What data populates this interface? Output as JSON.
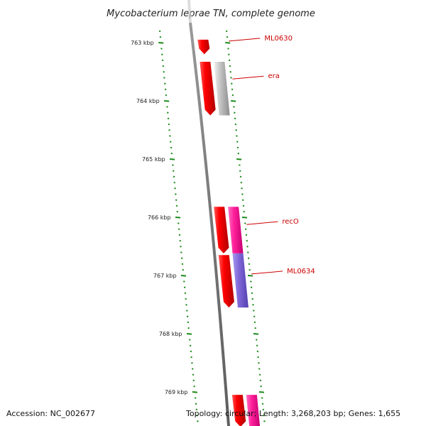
{
  "title": "Mycobacterium leprae TN, complete genome",
  "footer": {
    "accession": "Accession: NC_002677",
    "summary": "Topology: circular; Length: 3,268,203 bp; Genes: 1,655"
  },
  "colors": {
    "backbone": "#808080",
    "tick": "#1a8a1a",
    "label_line": "#cc0000",
    "label_text": "#cc0000",
    "gene_red": "#ff0000",
    "gene_gray": "#c0c0c0",
    "gene_magenta": "#ff1f9a",
    "gene_violet": "#7f67d8"
  },
  "scale_kbp": [
    763,
    764,
    765,
    766,
    767,
    768,
    769
  ],
  "scale_labels": [
    "763 kbp",
    "764 kbp",
    "765 kbp",
    "766 kbp",
    "767 kbp",
    "768 kbp",
    "769 kbp"
  ],
  "genes": [
    {
      "name": "ML0630",
      "start_kbp": 762.95,
      "end_kbp": 763.2,
      "strand": "-",
      "track": "inner",
      "color": "red"
    },
    {
      "name": "",
      "start_kbp": 763.33,
      "end_kbp": 764.25,
      "strand": "-",
      "track": "inner",
      "color": "red"
    },
    {
      "name": "era",
      "start_kbp": 763.33,
      "end_kbp": 764.25,
      "strand": "+",
      "track": "outer",
      "color": "gray"
    },
    {
      "name": "",
      "start_kbp": 765.82,
      "end_kbp": 766.62,
      "strand": "-",
      "track": "inner",
      "color": "red"
    },
    {
      "name": "recO",
      "start_kbp": 765.82,
      "end_kbp": 766.62,
      "strand": "+",
      "track": "outer",
      "color": "magenta"
    },
    {
      "name": "",
      "start_kbp": 766.65,
      "end_kbp": 767.55,
      "strand": "-",
      "track": "inner",
      "color": "red"
    },
    {
      "name": "ML0634",
      "start_kbp": 766.62,
      "end_kbp": 767.55,
      "strand": "+",
      "track": "outer",
      "color": "violet"
    },
    {
      "name": "",
      "start_kbp": 769.05,
      "end_kbp": 769.6,
      "strand": "-",
      "track": "inner",
      "color": "red"
    },
    {
      "name": "",
      "start_kbp": 769.05,
      "end_kbp": 769.6,
      "strand": "+",
      "track": "outer",
      "color": "magenta"
    }
  ],
  "gene_labels": [
    {
      "text": "ML0630",
      "at_kbp": 762.95
    },
    {
      "text": "era",
      "at_kbp": 763.6
    },
    {
      "text": "recO",
      "at_kbp": 766.1
    },
    {
      "text": "ML0634",
      "at_kbp": 766.95
    }
  ]
}
